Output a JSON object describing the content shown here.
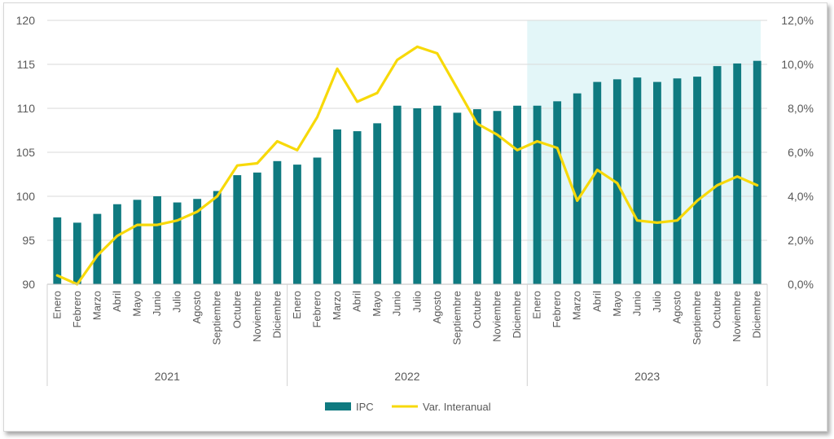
{
  "chart_data": {
    "type": "bar+line",
    "title": "",
    "years": [
      {
        "label": "2021",
        "months": [
          "Enero",
          "Febrero",
          "Marzo",
          "Abril",
          "Mayo",
          "Junio",
          "Julio",
          "Agosto",
          "Septiembre",
          "Octubre",
          "Noviembre",
          "Diciembre"
        ]
      },
      {
        "label": "2022",
        "months": [
          "Enero",
          "Febrero",
          "Marzo",
          "Abril",
          "Mayo",
          "Junio",
          "Julio",
          "Agosto",
          "Septiembre",
          "Octubre",
          "Noviembre",
          "Diciembre"
        ]
      },
      {
        "label": "2023",
        "months": [
          "Enero",
          "Febrero",
          "Marzo",
          "Abril",
          "Mayo",
          "Junio",
          "Julio",
          "Agosto",
          "Septiembre",
          "Octubre",
          "Noviembre",
          "Diciembre"
        ]
      }
    ],
    "series": [
      {
        "name": "IPC",
        "type": "bar",
        "axis": "left",
        "color": "#0f7a80",
        "values": [
          97.6,
          97.0,
          98.0,
          99.1,
          99.6,
          100.0,
          99.3,
          99.7,
          100.6,
          102.4,
          102.7,
          104.0,
          103.6,
          104.4,
          107.6,
          107.4,
          108.3,
          110.3,
          110.0,
          110.3,
          109.5,
          109.9,
          109.7,
          110.3,
          110.3,
          110.8,
          111.7,
          113.0,
          113.3,
          113.5,
          113.0,
          113.4,
          113.6,
          114.8,
          115.1,
          115.4
        ]
      },
      {
        "name": "Var. Interanual",
        "type": "line",
        "axis": "right",
        "color": "#f7d909",
        "values": [
          0.4,
          0.0,
          1.3,
          2.2,
          2.7,
          2.7,
          2.9,
          3.3,
          4.0,
          5.4,
          5.5,
          6.5,
          6.1,
          7.6,
          9.8,
          8.3,
          8.7,
          10.2,
          10.8,
          10.5,
          8.9,
          7.3,
          6.8,
          6.1,
          6.5,
          6.2,
          3.8,
          5.2,
          4.6,
          2.9,
          2.8,
          2.9,
          3.8,
          4.5,
          4.9,
          4.5
        ]
      }
    ],
    "y_left": {
      "min": 90,
      "max": 120,
      "step": 5,
      "ticks": [
        "90",
        "95",
        "100",
        "105",
        "110",
        "115",
        "120"
      ]
    },
    "y_right": {
      "min": 0,
      "max": 12,
      "step": 2,
      "ticks": [
        "0,0%",
        "2,0%",
        "4,0%",
        "6,0%",
        "8,0%",
        "10,0%",
        "12,0%"
      ]
    },
    "highlight": {
      "label_year": "2023",
      "color": "#e3f6f8"
    },
    "grid": true,
    "legend": {
      "position": "bottom",
      "items": [
        "IPC",
        "Var. Interanual"
      ]
    }
  }
}
